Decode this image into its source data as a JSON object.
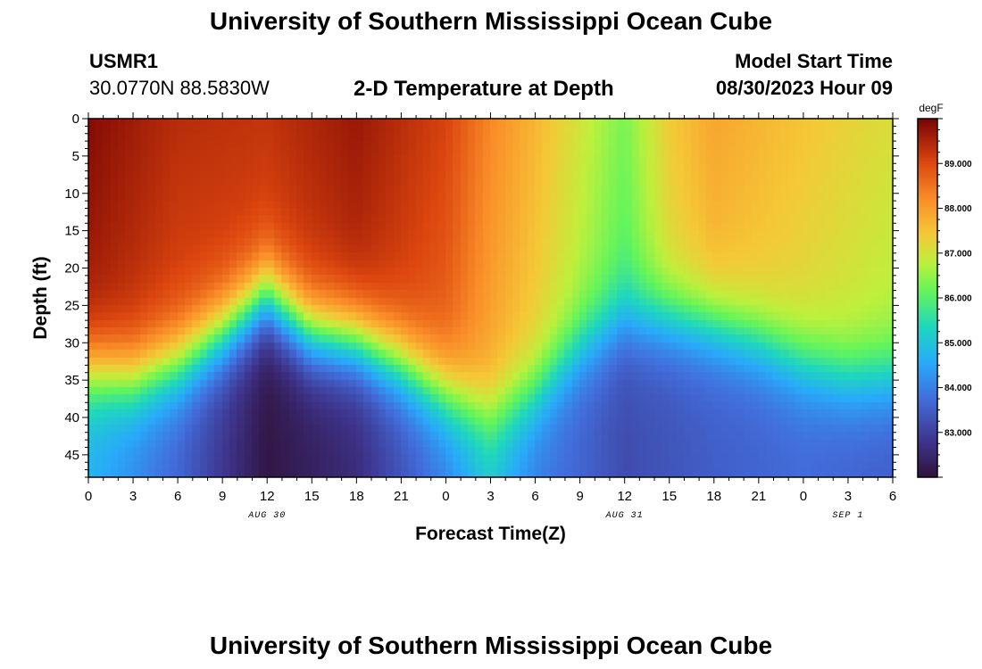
{
  "header": {
    "title": "University of Southern Mississippi Ocean Cube",
    "station_id": "USMR1",
    "coords": "30.0770N  88.5830W",
    "chart_title": "2-D Temperature at Depth",
    "model_label": "Model Start Time",
    "model_time": "08/30/2023 Hour 09"
  },
  "footer": {
    "title": "University of Southern Mississippi Ocean Cube"
  },
  "chart_data": {
    "type": "heatmap",
    "title": "2-D Temperature at Depth",
    "xlabel": "Forecast Time(Z)",
    "ylabel": "Depth (ft)",
    "x_tick_labels": [
      "0",
      "3",
      "6",
      "9",
      "12",
      "15",
      "18",
      "21",
      "0",
      "3",
      "6",
      "9",
      "12",
      "15",
      "18",
      "21",
      "0",
      "3",
      "6"
    ],
    "x_hours": [
      0,
      3,
      6,
      9,
      12,
      15,
      18,
      21,
      24,
      27,
      30,
      33,
      36,
      39,
      42,
      45,
      48,
      51,
      54
    ],
    "date_labels": [
      {
        "label": "AUG 30",
        "hour": 12
      },
      {
        "label": "AUG 31",
        "hour": 36
      },
      {
        "label": "SEP 1",
        "hour": 51
      }
    ],
    "xlim": [
      0,
      54
    ],
    "y_ticks": [
      0,
      5,
      10,
      15,
      20,
      25,
      30,
      35,
      40,
      45
    ],
    "ylim": [
      0,
      48
    ],
    "colorbar": {
      "unit": "degF",
      "ticks": [
        89.0,
        88.0,
        87.0,
        86.0,
        85.0,
        84.0,
        83.0
      ],
      "tick_labels": [
        "89.000",
        "88.000",
        "87.000",
        "86.000",
        "85.000",
        "84.000",
        "83.000"
      ],
      "range": [
        82.0,
        90.0
      ]
    },
    "thermocline_depth_ft": [
      {
        "hour": 0,
        "depth": 34
      },
      {
        "hour": 3,
        "depth": 35
      },
      {
        "hour": 6,
        "depth": 33
      },
      {
        "hour": 9,
        "depth": 29
      },
      {
        "hour": 12,
        "depth": 24
      },
      {
        "hour": 15,
        "depth": 29
      },
      {
        "hour": 18,
        "depth": 30
      },
      {
        "hour": 21,
        "depth": 33
      },
      {
        "hour": 24,
        "depth": 37
      },
      {
        "hour": 27,
        "depth": 40
      },
      {
        "hour": 30,
        "depth": 37
      },
      {
        "hour": 33,
        "depth": 31
      },
      {
        "hour": 36,
        "depth": 27
      },
      {
        "hour": 39,
        "depth": 27
      },
      {
        "hour": 42,
        "depth": 28
      },
      {
        "hour": 45,
        "depth": 30
      },
      {
        "hour": 48,
        "depth": 33
      },
      {
        "hour": 51,
        "depth": 35
      },
      {
        "hour": 54,
        "depth": 35
      }
    ],
    "surface_temp_degF": [
      {
        "hour": 0,
        "value": 89.9
      },
      {
        "hour": 6,
        "value": 89.4
      },
      {
        "hour": 12,
        "value": 89.3
      },
      {
        "hour": 18,
        "value": 89.7
      },
      {
        "hour": 24,
        "value": 89.1
      },
      {
        "hour": 27,
        "value": 88.3
      },
      {
        "hour": 30,
        "value": 87.7
      },
      {
        "hour": 33,
        "value": 87.0
      },
      {
        "hour": 36,
        "value": 86.3
      },
      {
        "hour": 39,
        "value": 87.4
      },
      {
        "hour": 42,
        "value": 87.9
      },
      {
        "hour": 48,
        "value": 87.5
      },
      {
        "hour": 54,
        "value": 87.1
      }
    ],
    "bottom_temp_degF": [
      {
        "hour": 0,
        "value": 84.7
      },
      {
        "hour": 6,
        "value": 83.6
      },
      {
        "hour": 12,
        "value": 82.1
      },
      {
        "hour": 18,
        "value": 82.6
      },
      {
        "hour": 24,
        "value": 84.0
      },
      {
        "hour": 27,
        "value": 85.0
      },
      {
        "hour": 30,
        "value": 84.0
      },
      {
        "hour": 36,
        "value": 83.2
      },
      {
        "hour": 42,
        "value": 83.5
      },
      {
        "hour": 48,
        "value": 83.7
      },
      {
        "hour": 54,
        "value": 83.5
      }
    ]
  }
}
